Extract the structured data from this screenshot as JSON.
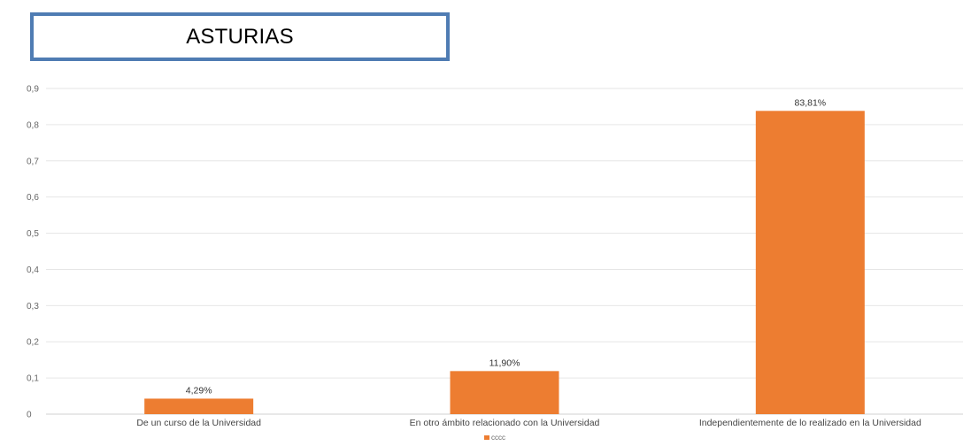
{
  "header": {
    "title": "ASTURIAS"
  },
  "colors": {
    "bar": "#ed7d31",
    "title_border": "#4f7cb3",
    "grid": "#e6e6e6",
    "axis_text": "#666666"
  },
  "chart_data": {
    "type": "bar",
    "title": "",
    "xlabel": "",
    "ylabel": "",
    "categories": [
      "De un curso de la Universidad",
      "En otro ámbito relacionado con la Universidad",
      "Independientemente de lo realizado en la Universidad"
    ],
    "series": [
      {
        "name": "cccc",
        "values": [
          0.0429,
          0.119,
          0.8381
        ],
        "labels": [
          "4,29%",
          "11,90%",
          "83,81%"
        ]
      }
    ],
    "ylim": [
      0,
      0.9
    ],
    "yticks": [
      "0",
      "0,1",
      "0,2",
      "0,3",
      "0,4",
      "0,5",
      "0,6",
      "0,7",
      "0,8",
      "0,9"
    ],
    "grid": true,
    "legend_position": "bottom"
  }
}
